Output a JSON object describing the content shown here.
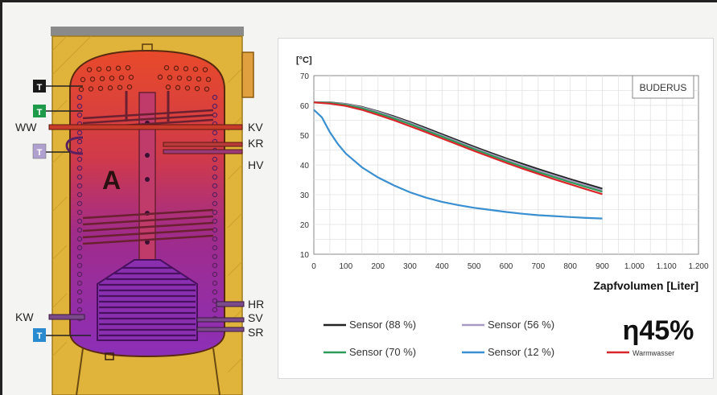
{
  "tank": {
    "zone_label": "A",
    "left_labels": [
      "WW",
      "KW"
    ],
    "right_labels": [
      "KV",
      "KR",
      "HV",
      "HR",
      "SV",
      "SR"
    ],
    "sensor_tags": [
      "T",
      "T",
      "T",
      "T"
    ],
    "colors": {
      "insulation": "#e0b43a",
      "top_hot": "#e2452a",
      "bottom_cool": "#8a2fb5",
      "pipe": "#7a4a8a"
    }
  },
  "chart_data": {
    "type": "line",
    "brand_label": "BUDERUS",
    "ylabel": "[°C]",
    "xlabel": "Zapfvolumen [Liter]",
    "xlim": [
      0,
      1200
    ],
    "ylim": [
      10,
      70
    ],
    "xticks": [
      0,
      100,
      200,
      300,
      400,
      500,
      600,
      700,
      800,
      900,
      1000,
      1100,
      1200
    ],
    "xtick_labels": [
      "0",
      "100",
      "200",
      "300",
      "400",
      "500",
      "600",
      "700",
      "800",
      "900",
      "1.000",
      "1.100",
      "1.200"
    ],
    "yticks": [
      10,
      20,
      30,
      40,
      50,
      60,
      70
    ],
    "grid": true,
    "series": [
      {
        "name": "Sensor (88 %)",
        "color": "#222222",
        "x": [
          0,
          50,
          100,
          150,
          200,
          250,
          300,
          350,
          400,
          450,
          500,
          550,
          600,
          650,
          700,
          750,
          800,
          850,
          900
        ],
        "y": [
          61,
          61,
          60.5,
          59.5,
          58,
          56.3,
          54.4,
          52.4,
          50.3,
          48.2,
          46.1,
          44.1,
          42.2,
          40.4,
          38.6,
          36.9,
          35.2,
          33.6,
          32
        ]
      },
      {
        "name": "Sensor (56 %)",
        "color": "#a79abf",
        "x": [
          0,
          50,
          100,
          150,
          200,
          250,
          300,
          350,
          400,
          450,
          500,
          550,
          600,
          650,
          700,
          750,
          800,
          850,
          900
        ],
        "y": [
          61,
          60.9,
          60.4,
          59.3,
          57.8,
          56,
          54.1,
          52,
          49.9,
          47.8,
          45.7,
          43.7,
          41.8,
          39.9,
          38.1,
          36.4,
          34.7,
          33.1,
          31.5
        ]
      },
      {
        "name": "Sensor (70 %)",
        "color": "#2e9a5a",
        "x": [
          0,
          50,
          100,
          150,
          200,
          250,
          300,
          350,
          400,
          450,
          500,
          550,
          600,
          650,
          700,
          750,
          800,
          850,
          900
        ],
        "y": [
          61,
          60.8,
          60.2,
          59,
          57.4,
          55.6,
          53.7,
          51.6,
          49.5,
          47.4,
          45.3,
          43.3,
          41.3,
          39.4,
          37.6,
          35.9,
          34.2,
          32.6,
          31
        ]
      },
      {
        "name": "Sensor (12 %)",
        "color": "#3a8fd0",
        "x": [
          0,
          25,
          50,
          75,
          100,
          150,
          200,
          250,
          300,
          350,
          400,
          450,
          500,
          550,
          600,
          650,
          700,
          750,
          800,
          850,
          900
        ],
        "y": [
          58.5,
          56,
          51,
          47,
          43.8,
          39.2,
          35.8,
          33.1,
          30.8,
          29,
          27.6,
          26.5,
          25.6,
          24.9,
          24.2,
          23.6,
          23.1,
          22.8,
          22.5,
          22.2,
          22
        ]
      },
      {
        "name": "Warmwasser",
        "color": "#d9262b",
        "x": [
          0,
          50,
          100,
          150,
          200,
          250,
          300,
          350,
          400,
          450,
          500,
          550,
          600,
          650,
          700,
          750,
          800,
          850,
          900
        ],
        "y": [
          61,
          60.6,
          59.8,
          58.5,
          56.8,
          55,
          53,
          51,
          48.9,
          46.8,
          44.7,
          42.7,
          40.7,
          38.8,
          37,
          35.2,
          33.5,
          31.8,
          30.2
        ]
      }
    ]
  },
  "legend_rows": [
    [
      {
        "series": 0,
        "label": "Sensor  (88 %)"
      },
      {
        "series": 1,
        "label": "Sensor  (56 %)"
      }
    ],
    [
      {
        "series": 2,
        "label": "Sensor  (70 %)"
      },
      {
        "series": 3,
        "label": "Sensor  (12 %)"
      },
      {
        "series": 4,
        "label": "Warmwasser"
      }
    ]
  ],
  "efficiency_label": "η45%"
}
